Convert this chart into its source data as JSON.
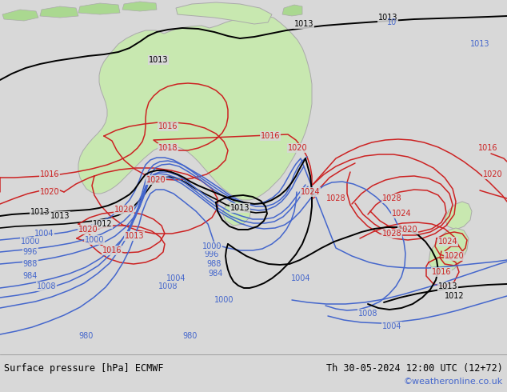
{
  "title_left": "Surface pressure [hPa] ECMWF",
  "title_right": "Th 30-05-2024 12:00 UTC (12+72)",
  "watermark": "©weatheronline.co.uk",
  "bg_color": "#d8d8d8",
  "land_color": "#c8e8b0",
  "land_edge_color": "#aaaaaa",
  "contour_blue": "#4466cc",
  "contour_black": "#000000",
  "contour_red": "#cc2222",
  "watermark_color": "#4466cc",
  "fig_width": 6.34,
  "fig_height": 4.9,
  "dpi": 100
}
